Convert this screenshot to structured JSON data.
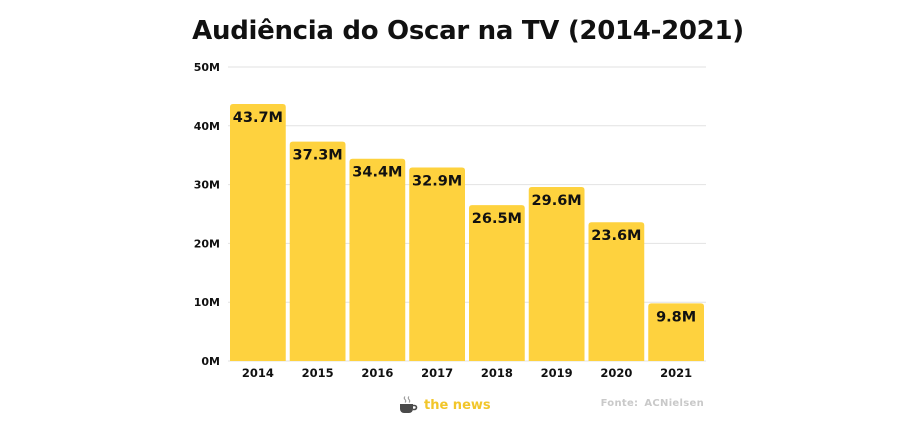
{
  "chart_data": {
    "type": "bar",
    "title": "Audiência do Oscar na TV (2014-2021)",
    "categories": [
      "2014",
      "2015",
      "2016",
      "2017",
      "2018",
      "2019",
      "2020",
      "2021"
    ],
    "values": [
      43.7,
      37.3,
      34.4,
      32.9,
      26.5,
      29.6,
      23.6,
      9.8
    ],
    "data_labels": [
      "43.7M",
      "37.3M",
      "34.4M",
      "32.9M",
      "26.5M",
      "29.6M",
      "23.6M",
      "9.8M"
    ],
    "ylim": [
      0,
      50
    ],
    "yticks": [
      0,
      10,
      20,
      30,
      40,
      50
    ],
    "ytick_labels": [
      "0M",
      "10M",
      "20M",
      "30M",
      "40M",
      "50M"
    ],
    "xlabel": "",
    "ylabel": "",
    "grid": true,
    "legend": "none",
    "bar_color": "#fed23e"
  },
  "footer": {
    "brand": "the news",
    "brand_icon": "coffee-cup-icon",
    "source_label": "Fonte:",
    "source_name": "ACNielsen"
  },
  "colors": {
    "bar": "#fed23e",
    "grid": "#e2e2e2",
    "text": "#111111",
    "brand": "#f2c62a",
    "source": "#c9c9c9"
  }
}
